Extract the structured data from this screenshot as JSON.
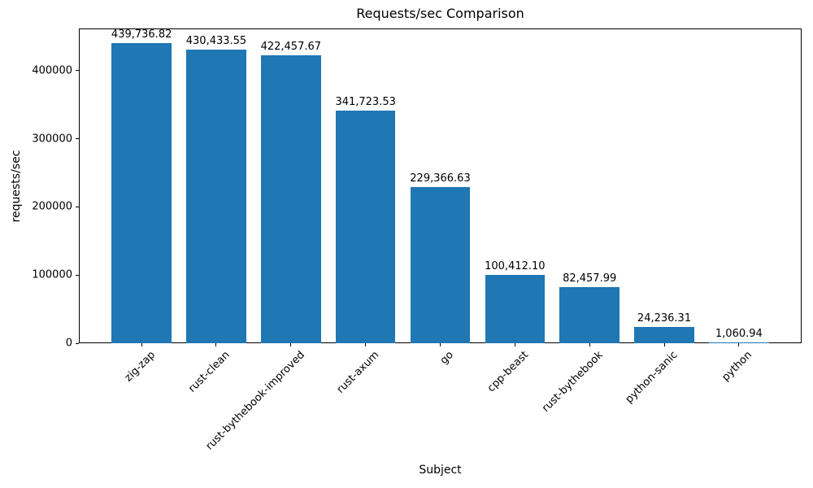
{
  "figure": {
    "background": "#ffffff"
  },
  "chart_data": {
    "type": "bar",
    "title": "Requests/sec Comparison",
    "xlabel": "Subject",
    "ylabel": "requests/sec",
    "categories": [
      "zig-zap",
      "rust-clean",
      "rust-bythebook-improved",
      "rust-axum",
      "go",
      "cpp-beast",
      "rust-bythebook",
      "python-sanic",
      "python"
    ],
    "values": [
      439736.82,
      430433.55,
      422457.67,
      341723.53,
      229366.63,
      100412.1,
      82457.99,
      24236.31,
      1060.94
    ],
    "value_labels": [
      "439,736.82",
      "430,433.55",
      "422,457.67",
      "341,723.53",
      "229,366.63",
      "100,412.10",
      "82,457.99",
      "24,236.31",
      "1,060.94"
    ],
    "yticks": [
      0,
      100000,
      200000,
      300000,
      400000
    ],
    "ytick_labels": [
      "0",
      "100000",
      "200000",
      "300000",
      "400000"
    ],
    "ylim": [
      0,
      461724
    ],
    "bar_color": "#1f77b4",
    "axis_color": "#000000",
    "grid": false,
    "legend_position": "none"
  }
}
